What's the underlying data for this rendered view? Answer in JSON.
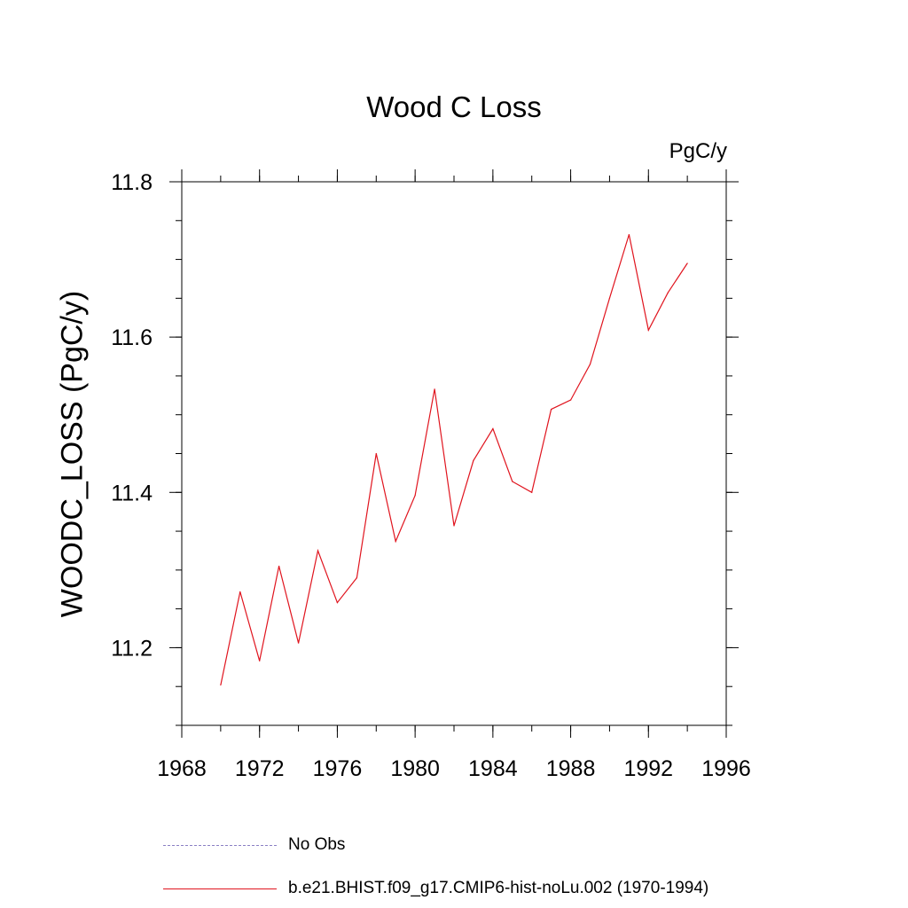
{
  "chart_data": {
    "type": "line",
    "title": "Wood C Loss",
    "units_label": "PgC/y",
    "ylabel": "WOODC_LOSS  (PgC/y)",
    "xlabel": "",
    "xlim": [
      1968,
      1996
    ],
    "ylim": [
      11.1,
      11.8
    ],
    "x_ticks": [
      1968,
      1972,
      1976,
      1980,
      1984,
      1988,
      1992,
      1996
    ],
    "y_ticks": [
      "11.2",
      "11.4",
      "11.6",
      "11.8"
    ],
    "y_minor_step": 0.05,
    "x_minor_step": 2,
    "grid": false,
    "legend_position": "bottom",
    "series": [
      {
        "name": "b.e21.BHIST.f09_g17.CMIP6-hist-noLu.002 (1970-1994)",
        "color": "#e0141e",
        "line_style": "solid",
        "x": [
          1970,
          1971,
          1972,
          1973,
          1974,
          1975,
          1976,
          1977,
          1978,
          1979,
          1980,
          1981,
          1982,
          1983,
          1984,
          1985,
          1986,
          1987,
          1988,
          1989,
          1990,
          1991,
          1992,
          1993,
          1994
        ],
        "values": [
          11.152,
          11.272,
          11.183,
          11.305,
          11.206,
          11.325,
          11.258,
          11.29,
          11.45,
          11.337,
          11.396,
          11.533,
          11.357,
          11.441,
          11.482,
          11.414,
          11.4,
          11.507,
          11.519,
          11.565,
          11.65,
          11.732,
          11.609,
          11.657,
          11.695
        ]
      },
      {
        "name": "No Obs",
        "color": "#8a7fc4",
        "line_style": "dashed",
        "x": [],
        "values": []
      }
    ]
  }
}
